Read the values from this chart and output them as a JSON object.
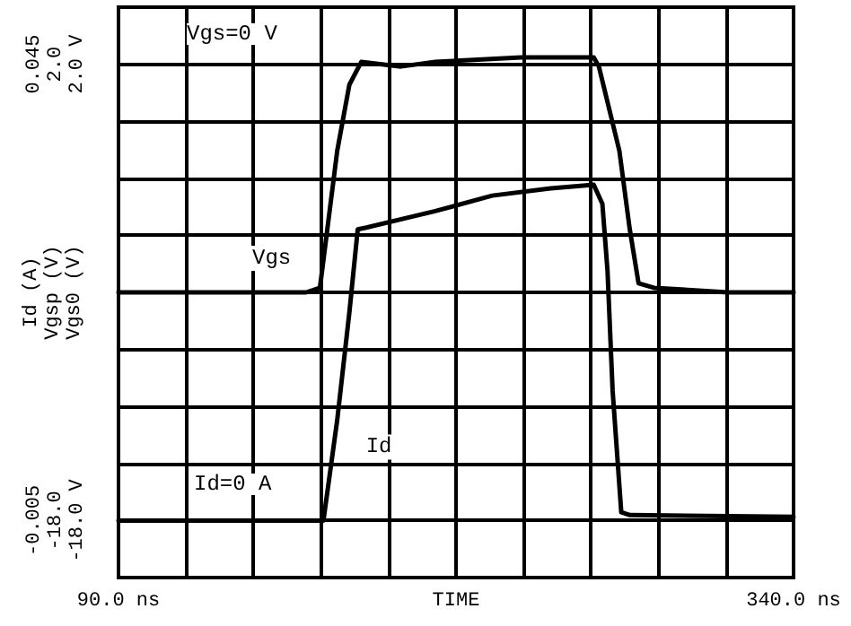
{
  "chart_data": {
    "type": "line",
    "xlabel": "TIME",
    "ylabel": "Id (A)",
    "y2label": "Vgsp (V)",
    "y3label": "Vgs0 (V)",
    "xlim": [
      90,
      340
    ],
    "xticks": [
      {
        "value": 90,
        "label": "90.0 ns"
      },
      {
        "value": 115,
        "label": null
      },
      {
        "value": 140,
        "label": null
      },
      {
        "value": 165,
        "label": null
      },
      {
        "value": 190,
        "label": null
      },
      {
        "value": 215,
        "label": null
      },
      {
        "value": 240,
        "label": null
      },
      {
        "value": 265,
        "label": null
      },
      {
        "value": 290,
        "label": null
      },
      {
        "value": 315,
        "label": null
      },
      {
        "value": 340,
        "label": "340.0 ns"
      }
    ],
    "ylim": [
      -0.01125,
      0.05125
    ],
    "yticks": [
      {
        "value": -0.01125,
        "label": null
      },
      {
        "value": -0.005,
        "label": "-0.005"
      },
      {
        "value": 0.00125,
        "label": null
      },
      {
        "value": 0.0075,
        "label": null
      },
      {
        "value": 0.01375,
        "label": null
      },
      {
        "value": 0.02,
        "label": null
      },
      {
        "value": 0.02625,
        "label": null
      },
      {
        "value": 0.0325,
        "label": null
      },
      {
        "value": 0.03875,
        "label": null
      },
      {
        "value": 0.045,
        "label": "0.045"
      },
      {
        "value": 0.05125,
        "label": null
      }
    ],
    "y2lim": [
      -20.5,
      4.5
    ],
    "y2ticks": [
      {
        "value": -18,
        "label": "-18.0"
      },
      {
        "value": 2,
        "label": "2.0"
      }
    ],
    "y3lim": [
      -20.5,
      4.5
    ],
    "y3ticks": [
      {
        "value": -18,
        "label": "-18.0 V"
      },
      {
        "value": 2,
        "label": "2.0 V"
      }
    ],
    "grid": true,
    "legend": false,
    "marker": "none",
    "line_style": "solid",
    "annotations": [
      "Vgs=0 V",
      "Id=0 A"
    ],
    "series": [
      {
        "name": "Vgs",
        "color": "#000000",
        "axis": "y2",
        "x": [
          90,
          159.5,
          164.6,
          171.0,
          175.5,
          179.9,
          194.6,
          207.3,
          239.2,
          266.0,
          267.9,
          275.5,
          279.3,
          282.6,
          288.3,
          315.7,
          340
        ],
        "values": [
          -8.0,
          -8.0,
          -7.8,
          -1.8,
          1.1,
          2.1,
          1.9,
          2.1,
          2.3,
          2.3,
          1.9,
          -1.8,
          -5.2,
          -7.6,
          -7.8,
          -8.0,
          -8.0
        ]
      },
      {
        "name": "Id",
        "color": "#000000",
        "axis": "y",
        "x": [
          90,
          165.9,
          171.0,
          175.5,
          178.6,
          181.8,
          207.3,
          228.4,
          250.1,
          266.0,
          269.2,
          271.1,
          273.0,
          276.2,
          279.4,
          340
        ],
        "values": [
          -0.005,
          -0.005,
          0.006,
          0.0178,
          0.0269,
          0.0271,
          0.0289,
          0.0306,
          0.0314,
          0.0318,
          0.0297,
          0.0224,
          0.0092,
          -0.0041,
          -0.0044,
          -0.0046
        ]
      }
    ]
  }
}
